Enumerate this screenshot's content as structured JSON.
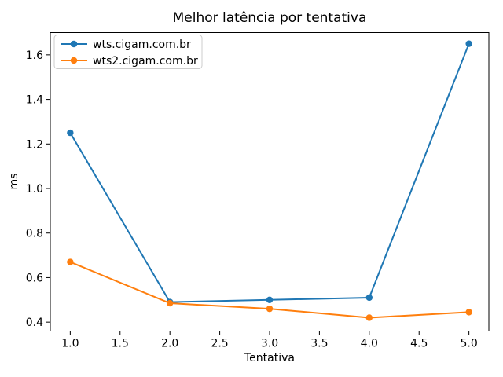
{
  "figure": {
    "background": "#ffffff",
    "spine_color": "#000000",
    "legend_border_color": "#cccccc",
    "legend_background": "#ffffff"
  },
  "chart_data": {
    "type": "line",
    "title": "Melhor latência por tentativa",
    "xlabel": "Tentativa",
    "ylabel": "ms",
    "x": [
      1,
      2,
      3,
      4,
      5
    ],
    "series": [
      {
        "name": "wts.cigam.com.br",
        "color": "#1f77b4",
        "values": [
          1.25,
          0.49,
          0.5,
          0.51,
          1.65
        ]
      },
      {
        "name": "wts2.cigam.com.br",
        "color": "#ff7f0e",
        "values": [
          0.67,
          0.485,
          0.46,
          0.42,
          0.445
        ]
      }
    ],
    "xlim": [
      0.8,
      5.2
    ],
    "ylim": [
      0.36,
      1.7
    ],
    "xticks": [
      1.0,
      1.5,
      2.0,
      2.5,
      3.0,
      3.5,
      4.0,
      4.5,
      5.0
    ],
    "yticks": [
      0.4,
      0.6,
      0.8,
      1.0,
      1.2,
      1.4,
      1.6
    ],
    "grid": false,
    "legend_position": "upper-left",
    "marker": "circle"
  }
}
